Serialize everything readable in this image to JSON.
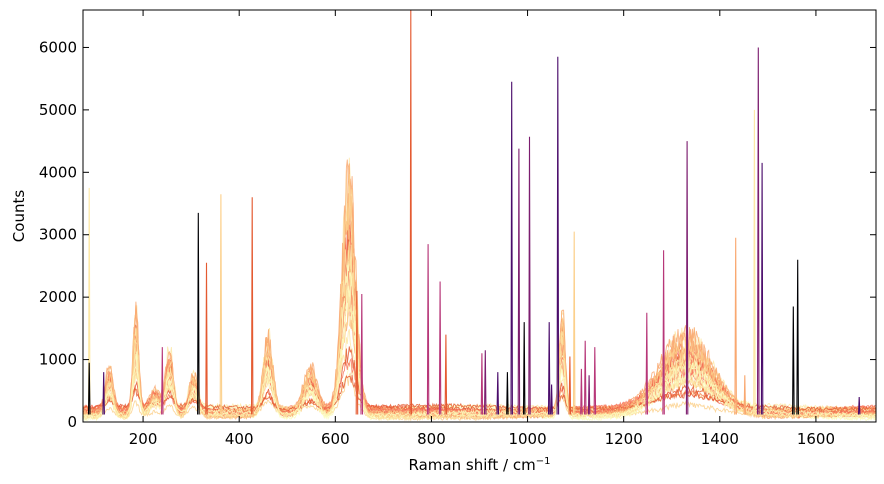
{
  "chart_data": {
    "type": "line",
    "title": "",
    "xlabel": "Raman shift / cm",
    "xlabel_superscript": "−1",
    "ylabel": "Counts",
    "xlim": [
      75,
      1725
    ],
    "ylim": [
      0,
      6600
    ],
    "x_ticks": [
      200,
      400,
      600,
      800,
      1000,
      1200,
      1400,
      1600
    ],
    "y_ticks": [
      0,
      1000,
      2000,
      3000,
      4000,
      5000,
      6000
    ],
    "grid": false,
    "legend": "none",
    "colormap": "magma",
    "colors": [
      "#000004",
      "#4a0c6b",
      "#7c1d6f",
      "#b73779",
      "#e45a31",
      "#f8765c",
      "#f9a870",
      "#fcd08b",
      "#fde8a6",
      "#fcfdbf"
    ],
    "n_spectra": 30,
    "broad_features": [
      {
        "center": 185,
        "width": 6,
        "height": 2000
      },
      {
        "center": 130,
        "width": 8,
        "height": 900
      },
      {
        "center": 225,
        "width": 12,
        "height": 450
      },
      {
        "center": 255,
        "width": 8,
        "height": 1250
      },
      {
        "center": 305,
        "width": 9,
        "height": 800
      },
      {
        "center": 460,
        "width": 10,
        "height": 1500
      },
      {
        "center": 548,
        "width": 14,
        "height": 900
      },
      {
        "center": 628,
        "width": 14,
        "height": 4700
      },
      {
        "center": 1072,
        "width": 6,
        "height": 2000
      },
      {
        "center": 1330,
        "width": 55,
        "height": 1550
      }
    ],
    "sharp_peaks": [
      {
        "x": 88,
        "y": 3750,
        "color": "#fde8a6"
      },
      {
        "x": 88,
        "y": 950,
        "color": "#000004"
      },
      {
        "x": 118,
        "y": 800,
        "color": "#4a0c6b"
      },
      {
        "x": 240,
        "y": 1200,
        "color": "#b73779"
      },
      {
        "x": 315,
        "y": 3350,
        "color": "#000004"
      },
      {
        "x": 332,
        "y": 2550,
        "color": "#e45a31"
      },
      {
        "x": 362,
        "y": 3650,
        "color": "#fcd08b"
      },
      {
        "x": 427,
        "y": 3600,
        "color": "#e45a31"
      },
      {
        "x": 645,
        "y": 2100,
        "color": "#e45a31"
      },
      {
        "x": 655,
        "y": 2050,
        "color": "#b73779"
      },
      {
        "x": 757,
        "y": 6600,
        "color": "#e45a31"
      },
      {
        "x": 793,
        "y": 2850,
        "color": "#b73779"
      },
      {
        "x": 818,
        "y": 2250,
        "color": "#b73779"
      },
      {
        "x": 830,
        "y": 1400,
        "color": "#e45a31"
      },
      {
        "x": 905,
        "y": 1100,
        "color": "#b73779"
      },
      {
        "x": 912,
        "y": 1150,
        "color": "#7c1d6f"
      },
      {
        "x": 938,
        "y": 800,
        "color": "#4a0c6b"
      },
      {
        "x": 958,
        "y": 800,
        "color": "#000004"
      },
      {
        "x": 967,
        "y": 5450,
        "color": "#4a0c6b"
      },
      {
        "x": 982,
        "y": 4380,
        "color": "#7c1d6f"
      },
      {
        "x": 993,
        "y": 1600,
        "color": "#000004"
      },
      {
        "x": 1004,
        "y": 4570,
        "color": "#7c1d6f"
      },
      {
        "x": 1045,
        "y": 1600,
        "color": "#4a0c6b"
      },
      {
        "x": 1050,
        "y": 600,
        "color": "#4a0c6b"
      },
      {
        "x": 1063,
        "y": 5850,
        "color": "#4a0c6b"
      },
      {
        "x": 1088,
        "y": 1050,
        "color": "#e45a31"
      },
      {
        "x": 1097,
        "y": 3050,
        "color": "#fcd08b"
      },
      {
        "x": 1112,
        "y": 850,
        "color": "#b73779"
      },
      {
        "x": 1120,
        "y": 1300,
        "color": "#b73779"
      },
      {
        "x": 1128,
        "y": 750,
        "color": "#7c1d6f"
      },
      {
        "x": 1140,
        "y": 1200,
        "color": "#b73779"
      },
      {
        "x": 1248,
        "y": 1750,
        "color": "#b73779"
      },
      {
        "x": 1283,
        "y": 2750,
        "color": "#b73779"
      },
      {
        "x": 1332,
        "y": 4500,
        "color": "#7c1d6f"
      },
      {
        "x": 1433,
        "y": 2950,
        "color": "#f9a870"
      },
      {
        "x": 1452,
        "y": 750,
        "color": "#f9a870"
      },
      {
        "x": 1472,
        "y": 5000,
        "color": "#fde8a6"
      },
      {
        "x": 1480,
        "y": 6000,
        "color": "#7c1d6f"
      },
      {
        "x": 1488,
        "y": 4150,
        "color": "#4a0c6b"
      },
      {
        "x": 1553,
        "y": 1850,
        "color": "#000004"
      },
      {
        "x": 1562,
        "y": 2600,
        "color": "#000004"
      },
      {
        "x": 1690,
        "y": 400,
        "color": "#4a0c6b"
      }
    ]
  }
}
